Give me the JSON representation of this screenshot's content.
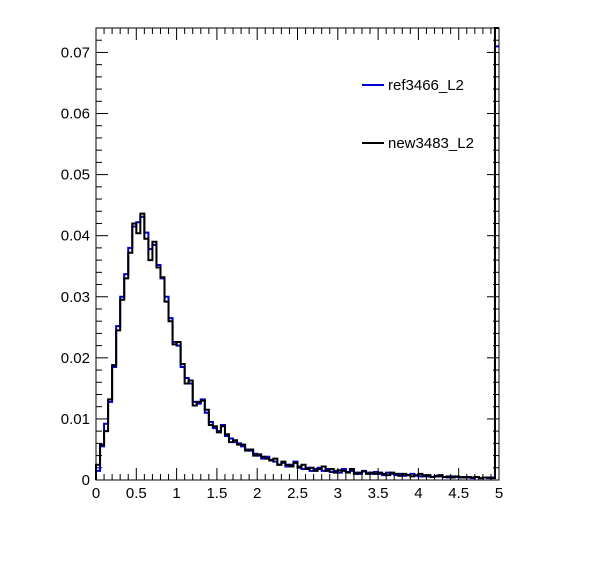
{
  "chart_data": {
    "type": "line",
    "title": "",
    "xlabel": "",
    "ylabel": "",
    "xlim": [
      0,
      5
    ],
    "ylim": [
      0,
      0.074
    ],
    "x_ticks": [
      "0",
      "0.5",
      "1",
      "1.5",
      "2",
      "2.5",
      "3",
      "3.5",
      "4",
      "4.5",
      "5"
    ],
    "y_ticks": [
      "0",
      "0.01",
      "0.02",
      "0.03",
      "0.04",
      "0.05",
      "0.06",
      "0.07"
    ],
    "grid": false,
    "legend_position": "top-right",
    "bin_width": 0.05,
    "series": [
      {
        "name": "ref3466_L2",
        "color": "#0000cc",
        "values": [
          0.0015,
          0.0055,
          0.0092,
          0.0128,
          0.0185,
          0.0252,
          0.03,
          0.0337,
          0.038,
          0.0415,
          0.0422,
          0.0431,
          0.0405,
          0.0378,
          0.0385,
          0.0352,
          0.033,
          0.03,
          0.0265,
          0.0226,
          0.022,
          0.0185,
          0.0167,
          0.0158,
          0.0128,
          0.0125,
          0.0132,
          0.011,
          0.0095,
          0.0085,
          0.008,
          0.009,
          0.0072,
          0.0068,
          0.0062,
          0.006,
          0.0055,
          0.005,
          0.0048,
          0.0043,
          0.004,
          0.0035,
          0.0038,
          0.0033,
          0.003,
          0.0025,
          0.0028,
          0.0022,
          0.0025,
          0.003,
          0.0022,
          0.0018,
          0.002,
          0.0015,
          0.0018,
          0.002,
          0.0015,
          0.0018,
          0.0013,
          0.0015,
          0.0012,
          0.0018,
          0.0013,
          0.0015,
          0.0012,
          0.001,
          0.0015,
          0.0012,
          0.001,
          0.0013,
          0.001,
          0.0008,
          0.0012,
          0.001,
          0.0008,
          0.001,
          0.0007,
          0.0008,
          0.001,
          0.0007,
          0.0006,
          0.0008,
          0.0006,
          0.0005,
          0.0007,
          0.0006,
          0.0005,
          0.0004,
          0.0006,
          0.0005,
          0.0004,
          0.0005,
          0.0004,
          0.0003,
          0.0005,
          0.0003,
          0.0004,
          0.0003,
          0.0004,
          0.071
        ]
      },
      {
        "name": "new3483_L2",
        "color": "#000000",
        "values": [
          0.0025,
          0.0058,
          0.008,
          0.0132,
          0.0188,
          0.0245,
          0.0295,
          0.033,
          0.0372,
          0.042,
          0.0404,
          0.0436,
          0.0395,
          0.036,
          0.039,
          0.0348,
          0.0332,
          0.0292,
          0.026,
          0.0222,
          0.0226,
          0.019,
          0.0158,
          0.0163,
          0.0122,
          0.0128,
          0.013,
          0.0115,
          0.009,
          0.0088,
          0.0078,
          0.0088,
          0.0075,
          0.0062,
          0.0065,
          0.0058,
          0.0058,
          0.0048,
          0.005,
          0.004,
          0.0042,
          0.0038,
          0.0035,
          0.0032,
          0.0035,
          0.0025,
          0.003,
          0.0025,
          0.0022,
          0.0028,
          0.002,
          0.0025,
          0.0018,
          0.002,
          0.0015,
          0.0018,
          0.0022,
          0.0015,
          0.0018,
          0.0012,
          0.0016,
          0.0015,
          0.0012,
          0.0018,
          0.001,
          0.0012,
          0.0014,
          0.001,
          0.0012,
          0.001,
          0.0012,
          0.001,
          0.0008,
          0.0012,
          0.001,
          0.0007,
          0.001,
          0.0008,
          0.0006,
          0.0008,
          0.001,
          0.0006,
          0.0008,
          0.0005,
          0.0006,
          0.0008,
          0.0005,
          0.0006,
          0.0004,
          0.0006,
          0.0005,
          0.0004,
          0.0005,
          0.0004,
          0.0005,
          0.0003,
          0.0004,
          0.0004,
          0.0003,
          0.074
        ]
      }
    ]
  }
}
